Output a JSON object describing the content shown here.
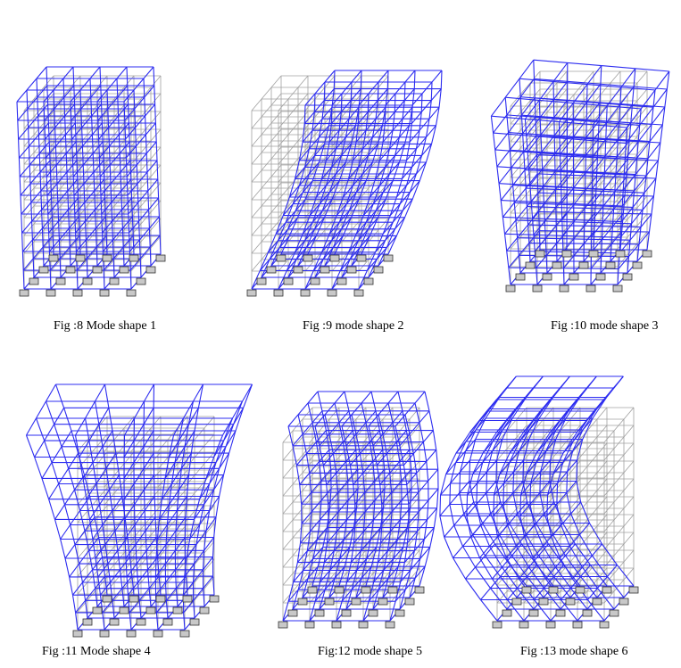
{
  "figures": [
    {
      "caption": "Fig :8 Mode shape 1",
      "mode": 1
    },
    {
      "caption": "Fig :9  mode shape 2",
      "mode": 2
    },
    {
      "caption": "Fig :10 mode shape 3",
      "mode": 3
    },
    {
      "caption": "Fig :11 Mode shape 4",
      "mode": 4
    },
    {
      "caption": "Fig:12 mode shape 5",
      "mode": 5
    },
    {
      "caption": "Fig :13 mode shape 6",
      "mode": 6
    }
  ],
  "colors": {
    "undeformed": "#a0a0a0",
    "deformed": "#2c2cf0",
    "support": "#888888"
  }
}
